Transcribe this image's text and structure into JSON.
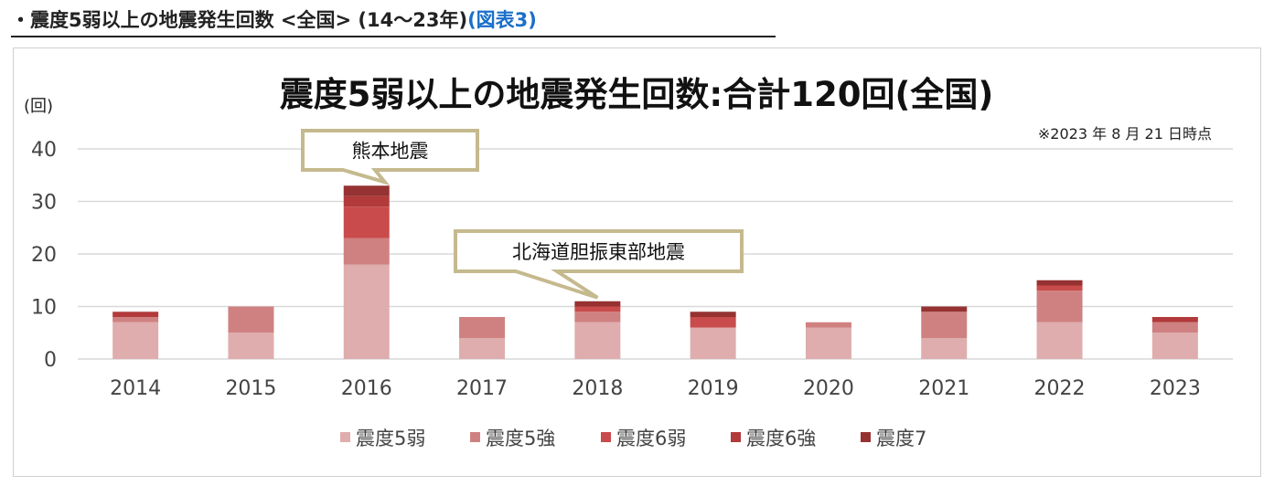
{
  "heading": {
    "main": "・震度5弱以上の地震発生回数 <全国> (14〜23年)",
    "link": "(図表3)"
  },
  "colors": {
    "s5w": "#dfadad",
    "s5s": "#cf8181",
    "s6w": "#c94b4b",
    "s6s": "#b23a3a",
    "s7": "#963232",
    "grid": "#d9d9d9",
    "callout_border": "#c5b98e"
  },
  "chart_data": {
    "type": "bar",
    "stacked": true,
    "title": "震度5弱以上の地震発生回数:合計120回(全国)",
    "note": "※2023 年 8 月 21 日時点",
    "ylabel": "(回)",
    "xlabel": "",
    "ylim": [
      0,
      40
    ],
    "yticks": [
      0,
      10,
      20,
      30,
      40
    ],
    "grid": true,
    "legend_position": "bottom",
    "categories": [
      "2014",
      "2015",
      "2016",
      "2017",
      "2018",
      "2019",
      "2020",
      "2021",
      "2022",
      "2023"
    ],
    "series": [
      {
        "name": "震度5弱",
        "values": [
          7,
          5,
          18,
          4,
          7,
          6,
          6,
          4,
          7,
          5
        ]
      },
      {
        "name": "震度5強",
        "values": [
          1,
          5,
          5,
          4,
          2,
          0,
          1,
          5,
          6,
          2
        ]
      },
      {
        "name": "震度6弱",
        "values": [
          0,
          0,
          6,
          0,
          1,
          2,
          0,
          0,
          1,
          0
        ]
      },
      {
        "name": "震度6強",
        "values": [
          1,
          0,
          2,
          0,
          0,
          0,
          0,
          0,
          0,
          1
        ]
      },
      {
        "name": "震度7",
        "values": [
          0,
          0,
          2,
          0,
          1,
          1,
          0,
          1,
          1,
          0
        ]
      }
    ],
    "annotations": [
      {
        "text": "熊本地震",
        "category": "2016"
      },
      {
        "text": "北海道胆振東部地震",
        "category": "2018"
      }
    ]
  }
}
